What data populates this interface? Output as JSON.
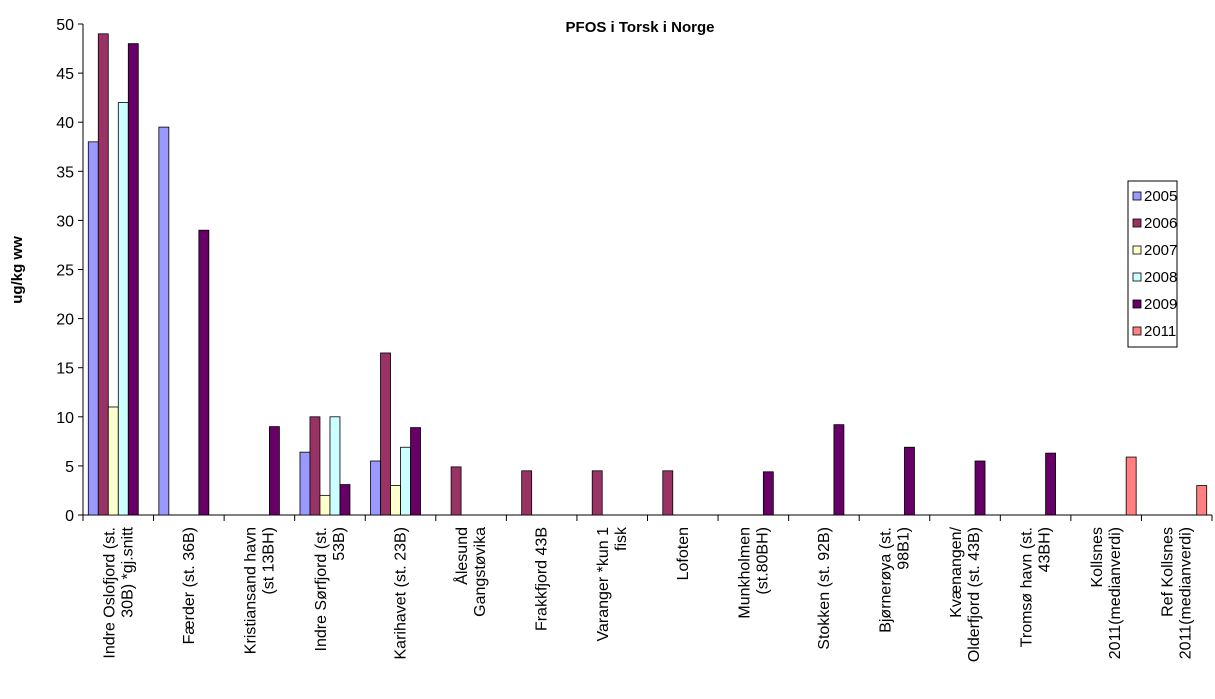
{
  "chart_data": {
    "type": "bar",
    "title": "PFOS i Torsk i Norge",
    "y_label": "ug/kg ww",
    "categories": [
      "Indre Oslofjord (st.\n30B) *gj.snitt",
      "Færder (st. 36B)",
      "Kristiansand havn\n(st 13BH)",
      "Indre Sørfjord (st.\n53B)",
      "Karihavet (st. 23B)",
      "Ålesund\nGangstøvika",
      "Frakkfjord 43B",
      "Varanger *kun 1\nfisk",
      "Lofoten",
      "Munkholmen\n(st.80BH)",
      "Stokken (st. 92B)",
      "Bjørnerøya (st.\n98B1)",
      "Kvænangen/\nOlderfjord (st. 43B)",
      "Tromsø havn (st.\n43BH)",
      "Kollsnes\n2011(medianverdi)",
      "Ref Kollsnes\n2011(medianverdi)"
    ],
    "series": [
      {
        "name": "2005",
        "color": "#9999ff",
        "values": [
          38,
          39.5,
          null,
          6.4,
          5.5,
          null,
          null,
          null,
          null,
          null,
          null,
          null,
          null,
          null,
          null,
          null
        ]
      },
      {
        "name": "2006",
        "color": "#993366",
        "values": [
          49,
          null,
          null,
          10,
          16.5,
          4.9,
          4.5,
          4.5,
          4.5,
          null,
          null,
          null,
          null,
          null,
          null,
          null
        ]
      },
      {
        "name": "2007",
        "color": "#ffffcc",
        "values": [
          11,
          null,
          null,
          2,
          3,
          null,
          null,
          null,
          null,
          null,
          null,
          null,
          null,
          null,
          null,
          null
        ]
      },
      {
        "name": "2008",
        "color": "#ccffff",
        "values": [
          42,
          null,
          null,
          10,
          6.9,
          null,
          null,
          null,
          null,
          null,
          null,
          null,
          null,
          null,
          null,
          null
        ]
      },
      {
        "name": "2009",
        "color": "#660066",
        "values": [
          48,
          29,
          9,
          3.1,
          8.9,
          null,
          null,
          null,
          null,
          4.4,
          9.2,
          6.9,
          5.5,
          6.3,
          null,
          null
        ]
      },
      {
        "name": "2011",
        "color": "#ff8080",
        "values": [
          null,
          null,
          null,
          null,
          null,
          null,
          null,
          null,
          null,
          null,
          null,
          null,
          null,
          null,
          5.9,
          3
        ]
      }
    ],
    "ylim": [
      0,
      50
    ],
    "yticks": [
      0,
      5,
      10,
      15,
      20,
      25,
      30,
      35,
      40,
      45,
      50
    ],
    "legend": "right"
  }
}
